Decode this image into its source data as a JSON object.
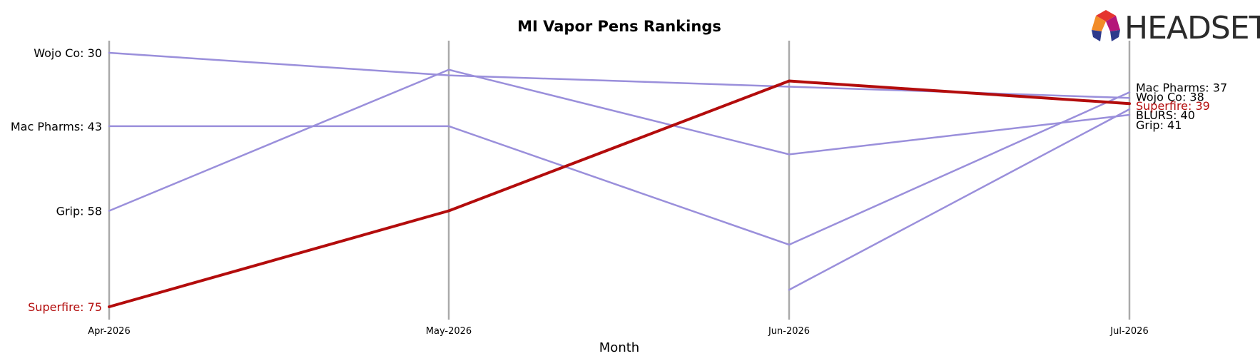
{
  "chart_data": {
    "type": "line",
    "title": "MI Vapor Pens Rankings",
    "xlabel": "Month",
    "ylabel": "",
    "categories": [
      "Apr-2026",
      "May-2026",
      "Jun-2026",
      "Jul-2026"
    ],
    "y_inverted": true,
    "ylim": [
      78,
      26
    ],
    "grid": "vertical-lines-at-categories",
    "series": [
      {
        "name": "Wojo Co",
        "values": [
          30,
          34,
          36,
          38
        ],
        "color": "#9a8fdb",
        "highlight": false,
        "start_label": "Wojo Co: 30",
        "end_label": "Wojo Co: 38"
      },
      {
        "name": "Mac Pharms",
        "values": [
          43,
          43,
          64,
          37
        ],
        "color": "#9a8fdb",
        "highlight": false,
        "start_label": "Mac Pharms: 43",
        "end_label": "Mac Pharms: 37"
      },
      {
        "name": "Grip",
        "values": [
          58,
          33,
          48,
          41
        ],
        "color": "#9a8fdb",
        "highlight": false,
        "start_label": "Grip: 58",
        "end_label": "Grip: 41"
      },
      {
        "name": "BLURS",
        "values": [
          null,
          null,
          72,
          40
        ],
        "color": "#9a8fdb",
        "highlight": false,
        "start_label": "",
        "end_label": "BLURS: 40"
      },
      {
        "name": "Superfire",
        "values": [
          75,
          58,
          35,
          39
        ],
        "color": "#b30c0c",
        "highlight": true,
        "start_label": "Superfire: 75",
        "end_label": "Superfire: 39"
      }
    ]
  },
  "logo": {
    "text": "HEADSET",
    "colors": [
      "#e5352f",
      "#f28c28",
      "#b4177a",
      "#2d3a8c"
    ]
  }
}
